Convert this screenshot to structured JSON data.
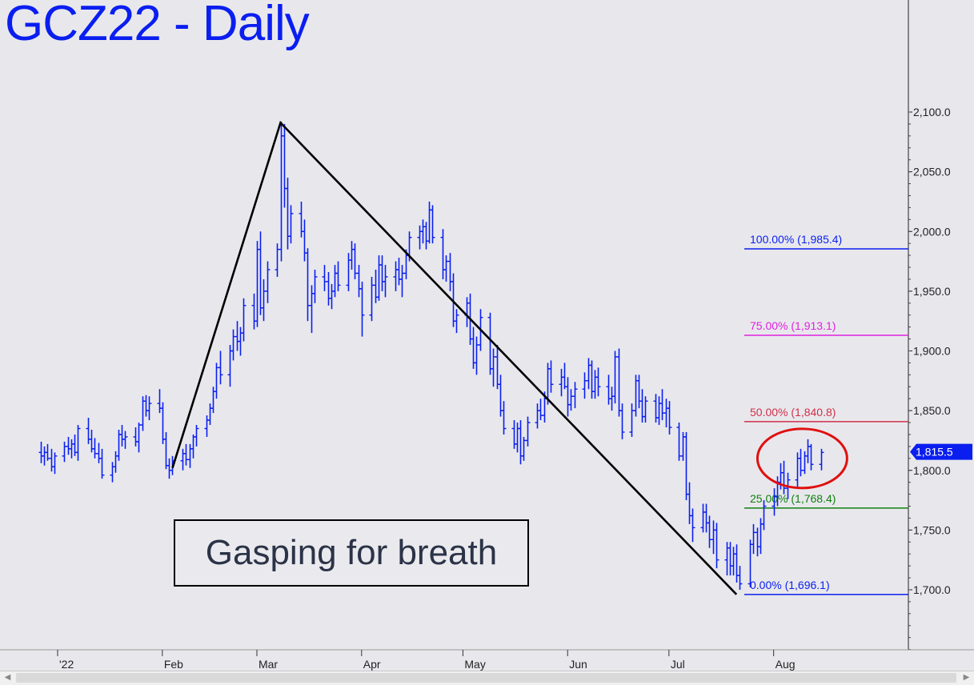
{
  "title": "GCZ22 - Daily",
  "annotation": "Gasping for breath",
  "colors": {
    "bars": "#0a1ef0",
    "fib_100": "#0a1ef0",
    "fib_75": "#e020e0",
    "fib_50": "#d0304a",
    "fib_25": "#108010",
    "fib_0": "#0a1ef0",
    "abc_line": "#000000",
    "circle": "#e01010",
    "price_tag": "#0a1ef0"
  },
  "chart_data": {
    "type": "ohlc",
    "title": "GCZ22 - Daily",
    "xlabel": "",
    "ylabel": "",
    "ylim": [
      1645,
      2105
    ],
    "y_ticks": [
      "2,100.0",
      "2,050.0",
      "2,000.0",
      "1,950.0",
      "1,900.0",
      "1,850.0",
      "1,800.0",
      "1,750.0",
      "1,700.0"
    ],
    "x_ticks": [
      "'22",
      "Feb",
      "Mar",
      "Apr",
      "May",
      "Jun",
      "Jul",
      "Aug"
    ],
    "last_price": "1,815.5",
    "fib_levels": [
      {
        "label": "100.00% (1,985.4)",
        "value": 1985.4,
        "color": "#0a1ef0"
      },
      {
        "label": "75.00% (1,913.1)",
        "value": 1913.1,
        "color": "#e020e0"
      },
      {
        "label": "50.00% (1,840.8)",
        "value": 1840.8,
        "color": "#d0304a"
      },
      {
        "label": "25.00% (1,768.4)",
        "value": 1768.4,
        "color": "#108010"
      },
      {
        "label": "0.00% (1,696.1)",
        "value": 1696.1,
        "color": "#0a1ef0"
      }
    ],
    "abc_pattern": [
      {
        "date": "2022-02-04",
        "value": 1802
      },
      {
        "date": "2022-03-08",
        "value": 2091
      },
      {
        "date": "2022-07-21",
        "value": 1696.1
      }
    ],
    "series": [
      {
        "values": [
          [
            1815,
            1824,
            1806,
            1812
          ],
          [
            1812,
            1820,
            1804,
            1815
          ],
          [
            1815,
            1822,
            1808,
            1810
          ],
          [
            1810,
            1818,
            1799,
            1803
          ],
          [
            1803,
            1815,
            1797,
            1812
          ],
          [
            1812,
            1824,
            1807,
            1820
          ],
          [
            1820,
            1828,
            1813,
            1818
          ],
          [
            1818,
            1826,
            1810,
            1822
          ],
          [
            1822,
            1830,
            1812,
            1815
          ],
          [
            1815,
            1838,
            1808,
            1835
          ],
          [
            1835,
            1844,
            1822,
            1826
          ],
          [
            1826,
            1834,
            1815,
            1818
          ],
          [
            1818,
            1827,
            1810,
            1814
          ],
          [
            1814,
            1823,
            1806,
            1810
          ],
          [
            1810,
            1818,
            1793,
            1796
          ],
          [
            1796,
            1807,
            1790,
            1803
          ],
          [
            1803,
            1816,
            1798,
            1812
          ],
          [
            1812,
            1834,
            1808,
            1830
          ],
          [
            1830,
            1838,
            1820,
            1826
          ],
          [
            1826,
            1833,
            1818,
            1828
          ],
          [
            1828,
            1836,
            1820,
            1824
          ],
          [
            1824,
            1840,
            1815,
            1838
          ],
          [
            1838,
            1862,
            1833,
            1858
          ],
          [
            1858,
            1863,
            1845,
            1850
          ],
          [
            1850,
            1862,
            1842,
            1856
          ],
          [
            1856,
            1868,
            1848,
            1852
          ],
          [
            1852,
            1857,
            1822,
            1826
          ],
          [
            1826,
            1832,
            1801,
            1804
          ],
          [
            1804,
            1810,
            1793,
            1800
          ],
          [
            1800,
            1812,
            1796,
            1808
          ],
          [
            1808,
            1818,
            1800,
            1814
          ],
          [
            1814,
            1822,
            1804,
            1809
          ],
          [
            1809,
            1822,
            1802,
            1818
          ],
          [
            1818,
            1830,
            1810,
            1828
          ],
          [
            1828,
            1838,
            1820,
            1835
          ],
          [
            1835,
            1846,
            1828,
            1842
          ],
          [
            1842,
            1856,
            1838,
            1852
          ],
          [
            1852,
            1870,
            1848,
            1866
          ],
          [
            1866,
            1890,
            1860,
            1886
          ],
          [
            1886,
            1900,
            1872,
            1880
          ],
          [
            1880,
            1905,
            1870,
            1900
          ],
          [
            1900,
            1918,
            1892,
            1912
          ],
          [
            1912,
            1925,
            1900,
            1908
          ],
          [
            1908,
            1920,
            1896,
            1915
          ],
          [
            1915,
            1944,
            1908,
            1938
          ],
          [
            1938,
            1948,
            1918,
            1925
          ],
          [
            1925,
            1992,
            1920,
            1985
          ],
          [
            1985,
            2000,
            1930,
            1936
          ],
          [
            1936,
            1960,
            1925,
            1950
          ],
          [
            1950,
            1975,
            1940,
            1968
          ],
          [
            1968,
            1990,
            1962,
            1985
          ],
          [
            1985,
            2092,
            1975,
            2080
          ],
          [
            2080,
            2090,
            2020,
            2036
          ],
          [
            2036,
            2045,
            1985,
            1996
          ],
          [
            1996,
            2022,
            1990,
            2015
          ],
          [
            2015,
            2025,
            1995,
            2000
          ],
          [
            2000,
            2010,
            1975,
            1982
          ],
          [
            1982,
            1986,
            1925,
            1938
          ],
          [
            1938,
            1955,
            1915,
            1948
          ],
          [
            1948,
            1968,
            1940,
            1962
          ],
          [
            1962,
            1972,
            1950,
            1958
          ],
          [
            1958,
            1966,
            1938,
            1944
          ],
          [
            1944,
            1956,
            1935,
            1950
          ],
          [
            1950,
            1972,
            1945,
            1965
          ],
          [
            1965,
            1975,
            1950,
            1955
          ],
          [
            1955,
            1982,
            1950,
            1976
          ],
          [
            1976,
            1992,
            1968,
            1985
          ],
          [
            1985,
            1990,
            1960,
            1965
          ],
          [
            1965,
            1972,
            1945,
            1952
          ],
          [
            1952,
            1958,
            1912,
            1930
          ],
          [
            1930,
            1962,
            1925,
            1955
          ],
          [
            1955,
            1968,
            1940,
            1945
          ],
          [
            1945,
            1980,
            1942,
            1972
          ],
          [
            1972,
            1980,
            1950,
            1958
          ],
          [
            1958,
            1972,
            1945,
            1962
          ],
          [
            1962,
            1975,
            1950,
            1968
          ],
          [
            1968,
            1978,
            1955,
            1960
          ],
          [
            1960,
            1972,
            1945,
            1965
          ],
          [
            1965,
            1985,
            1960,
            1980
          ],
          [
            1980,
            2000,
            1975,
            1995
          ],
          [
            1995,
            2005,
            1985,
            2000
          ],
          [
            2000,
            2010,
            1990,
            2004
          ],
          [
            2004,
            2008,
            1985,
            1992
          ],
          [
            1992,
            2025,
            1990,
            2018
          ],
          [
            2018,
            2022,
            1990,
            1995
          ],
          [
            1995,
            2002,
            1960,
            1968
          ],
          [
            1968,
            1980,
            1958,
            1975
          ],
          [
            1975,
            1982,
            1950,
            1958
          ],
          [
            1958,
            1965,
            1920,
            1925
          ],
          [
            1925,
            1935,
            1915,
            1930
          ],
          [
            1930,
            1945,
            1920,
            1940
          ],
          [
            1940,
            1948,
            1905,
            1910
          ],
          [
            1910,
            1920,
            1885,
            1890
          ],
          [
            1890,
            1912,
            1880,
            1905
          ],
          [
            1905,
            1935,
            1900,
            1928
          ],
          [
            1928,
            1932,
            1880,
            1885
          ],
          [
            1885,
            1902,
            1870,
            1895
          ],
          [
            1895,
            1905,
            1868,
            1872
          ],
          [
            1872,
            1880,
            1845,
            1850
          ],
          [
            1850,
            1858,
            1830,
            1835
          ],
          [
            1835,
            1842,
            1818,
            1822
          ],
          [
            1822,
            1840,
            1815,
            1835
          ],
          [
            1835,
            1842,
            1805,
            1812
          ],
          [
            1812,
            1828,
            1808,
            1825
          ],
          [
            1825,
            1845,
            1820,
            1840
          ],
          [
            1840,
            1856,
            1835,
            1850
          ],
          [
            1850,
            1860,
            1842,
            1846
          ],
          [
            1846,
            1866,
            1840,
            1860
          ],
          [
            1860,
            1890,
            1855,
            1885
          ],
          [
            1885,
            1892,
            1865,
            1872
          ],
          [
            1872,
            1885,
            1862,
            1878
          ],
          [
            1878,
            1890,
            1868,
            1870
          ],
          [
            1870,
            1878,
            1845,
            1855
          ],
          [
            1855,
            1868,
            1850,
            1862
          ],
          [
            1862,
            1874,
            1852,
            1868
          ],
          [
            1868,
            1882,
            1860,
            1875
          ],
          [
            1875,
            1894,
            1868,
            1888
          ],
          [
            1888,
            1892,
            1860,
            1866
          ],
          [
            1866,
            1884,
            1860,
            1878
          ],
          [
            1878,
            1886,
            1862,
            1870
          ],
          [
            1870,
            1880,
            1855,
            1860
          ],
          [
            1860,
            1870,
            1850,
            1862
          ],
          [
            1862,
            1900,
            1856,
            1895
          ],
          [
            1895,
            1902,
            1845,
            1850
          ],
          [
            1850,
            1856,
            1826,
            1832
          ],
          [
            1832,
            1856,
            1828,
            1850
          ],
          [
            1850,
            1880,
            1845,
            1875
          ],
          [
            1875,
            1880,
            1852,
            1858
          ],
          [
            1858,
            1868,
            1840,
            1845
          ],
          [
            1845,
            1862,
            1840,
            1858
          ],
          [
            1858,
            1864,
            1840,
            1844
          ],
          [
            1844,
            1862,
            1838,
            1856
          ],
          [
            1856,
            1868,
            1842,
            1848
          ],
          [
            1848,
            1860,
            1836,
            1852
          ],
          [
            1852,
            1858,
            1830,
            1836
          ],
          [
            1836,
            1840,
            1808,
            1812
          ],
          [
            1812,
            1832,
            1808,
            1828
          ],
          [
            1828,
            1832,
            1775,
            1780
          ],
          [
            1780,
            1790,
            1755,
            1762
          ],
          [
            1762,
            1768,
            1740,
            1752
          ],
          [
            1752,
            1772,
            1748,
            1765
          ],
          [
            1765,
            1772,
            1748,
            1756
          ],
          [
            1756,
            1762,
            1735,
            1742
          ],
          [
            1742,
            1758,
            1730,
            1750
          ],
          [
            1750,
            1756,
            1718,
            1725
          ],
          [
            1725,
            1740,
            1712,
            1735
          ],
          [
            1735,
            1740,
            1712,
            1720
          ],
          [
            1720,
            1736,
            1712,
            1730
          ],
          [
            1730,
            1738,
            1706,
            1712
          ],
          [
            1712,
            1720,
            1700,
            1705
          ],
          [
            1705,
            1742,
            1702,
            1738
          ],
          [
            1738,
            1755,
            1730,
            1748
          ],
          [
            1748,
            1752,
            1728,
            1736
          ],
          [
            1736,
            1760,
            1730,
            1755
          ],
          [
            1755,
            1775,
            1750,
            1770
          ],
          [
            1770,
            1785,
            1762,
            1778
          ],
          [
            1778,
            1795,
            1770,
            1790
          ],
          [
            1790,
            1806,
            1784,
            1798
          ],
          [
            1798,
            1808,
            1780,
            1785
          ],
          [
            1785,
            1798,
            1776,
            1792
          ],
          [
            1792,
            1815,
            1786,
            1810
          ],
          [
            1810,
            1818,
            1795,
            1800
          ],
          [
            1800,
            1816,
            1797,
            1812
          ],
          [
            1812,
            1826,
            1806,
            1820
          ],
          [
            1820,
            1822,
            1800,
            1805
          ],
          [
            1805,
            1818,
            1800,
            1815
          ]
        ]
      }
    ]
  },
  "scrollbar": {
    "left_icon": "chevron-left-icon",
    "right_icon": "chevron-right-icon",
    "left_glyph": "◀",
    "right_glyph": "▶"
  }
}
